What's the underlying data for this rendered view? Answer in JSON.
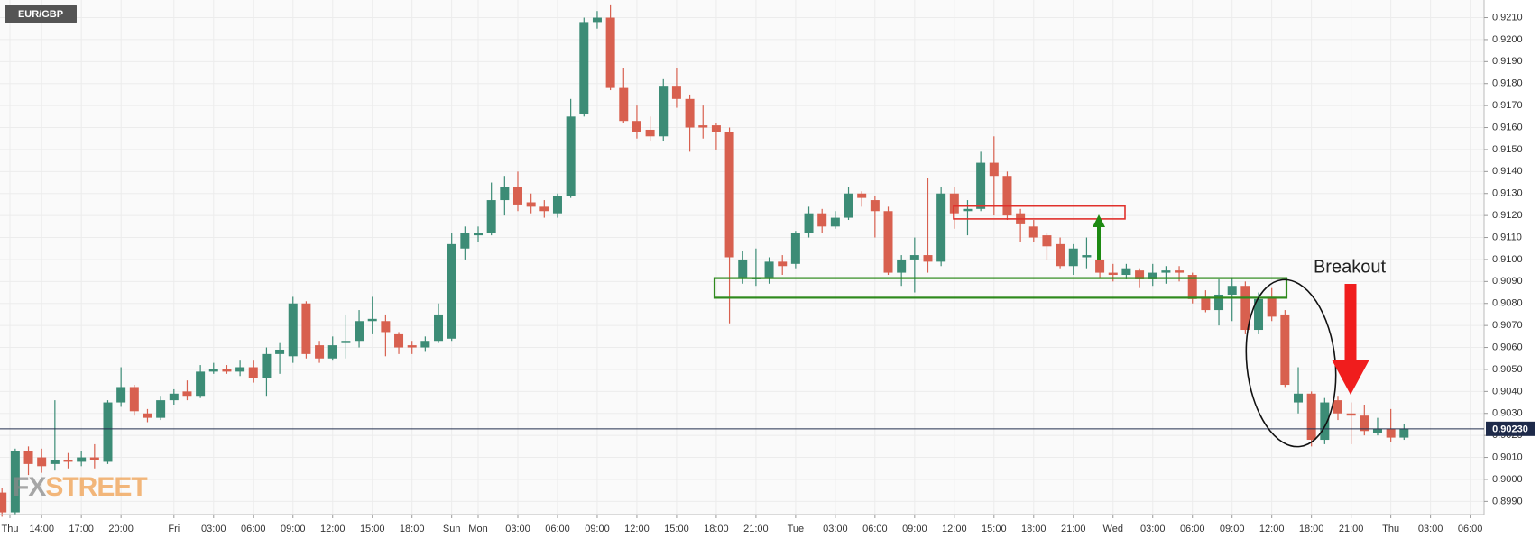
{
  "chart_data": {
    "type": "candlestick",
    "title": "EUR/GBP",
    "watermark": [
      "FX",
      "STREET"
    ],
    "annotation": "Breakout",
    "up_color": "#3c8c76",
    "down_color": "#d8604f",
    "grid": true,
    "xlim": [
      -0.15,
      112.05
    ],
    "ylim": [
      0.8984,
      0.9218
    ],
    "last_price": {
      "value": 0.9023,
      "label": "0.90230"
    },
    "xticks": [
      {
        "value": 0.6,
        "label": "Thu"
      },
      {
        "value": 3,
        "label": "14:00"
      },
      {
        "value": 6,
        "label": "17:00"
      },
      {
        "value": 9,
        "label": "20:00"
      },
      {
        "value": 13,
        "label": "Fri"
      },
      {
        "value": 16,
        "label": "03:00"
      },
      {
        "value": 19,
        "label": "06:00"
      },
      {
        "value": 22,
        "label": "09:00"
      },
      {
        "value": 25,
        "label": "12:00"
      },
      {
        "value": 28,
        "label": "15:00"
      },
      {
        "value": 31,
        "label": "18:00"
      },
      {
        "value": 34,
        "label": "Sun"
      },
      {
        "value": 36,
        "label": "Mon"
      },
      {
        "value": 39,
        "label": "03:00"
      },
      {
        "value": 42,
        "label": "06:00"
      },
      {
        "value": 45,
        "label": "09:00"
      },
      {
        "value": 48,
        "label": "12:00"
      },
      {
        "value": 51,
        "label": "15:00"
      },
      {
        "value": 54,
        "label": "18:00"
      },
      {
        "value": 57,
        "label": "21:00"
      },
      {
        "value": 60,
        "label": "Tue"
      },
      {
        "value": 63,
        "label": "03:00"
      },
      {
        "value": 66,
        "label": "06:00"
      },
      {
        "value": 69,
        "label": "09:00"
      },
      {
        "value": 72,
        "label": "12:00"
      },
      {
        "value": 75,
        "label": "15:00"
      },
      {
        "value": 78,
        "label": "18:00"
      },
      {
        "value": 81,
        "label": "21:00"
      },
      {
        "value": 84,
        "label": "Wed"
      },
      {
        "value": 87,
        "label": "03:00"
      },
      {
        "value": 90,
        "label": "06:00"
      },
      {
        "value": 93,
        "label": "09:00"
      },
      {
        "value": 96,
        "label": "12:00"
      },
      {
        "value": 99,
        "label": "18:00"
      },
      {
        "value": 102,
        "label": "21:00"
      },
      {
        "value": 105,
        "label": "Thu"
      },
      {
        "value": 108,
        "label": "03:00"
      },
      {
        "value": 111,
        "label": "06:00"
      }
    ],
    "yticks": [
      {
        "value": 0.899,
        "label": "0.8990"
      },
      {
        "value": 0.9,
        "label": "0.9000"
      },
      {
        "value": 0.901,
        "label": "0.9010"
      },
      {
        "value": 0.902,
        "label": "0.9020"
      },
      {
        "value": 0.903,
        "label": "0.9030"
      },
      {
        "value": 0.904,
        "label": "0.9040"
      },
      {
        "value": 0.905,
        "label": "0.9050"
      },
      {
        "value": 0.906,
        "label": "0.9060"
      },
      {
        "value": 0.907,
        "label": "0.9070"
      },
      {
        "value": 0.908,
        "label": "0.9080"
      },
      {
        "value": 0.909,
        "label": "0.9090"
      },
      {
        "value": 0.91,
        "label": "0.9100"
      },
      {
        "value": 0.911,
        "label": "0.9110"
      },
      {
        "value": 0.912,
        "label": "0.9120"
      },
      {
        "value": 0.913,
        "label": "0.9130"
      },
      {
        "value": 0.914,
        "label": "0.9140"
      },
      {
        "value": 0.915,
        "label": "0.9150"
      },
      {
        "value": 0.916,
        "label": "0.9160"
      },
      {
        "value": 0.917,
        "label": "0.9170"
      },
      {
        "value": 0.918,
        "label": "0.9180"
      },
      {
        "value": 0.919,
        "label": "0.9190"
      },
      {
        "value": 0.92,
        "label": "0.9200"
      },
      {
        "value": 0.921,
        "label": "0.9210"
      }
    ],
    "open": [
      0.8994,
      0.8985,
      0.9013,
      0.901,
      0.9007,
      0.9009,
      0.9008,
      0.901,
      0.9008,
      0.9035,
      0.9042,
      0.903,
      0.9028,
      0.9036,
      0.904,
      0.9038,
      0.9049,
      0.905,
      0.9049,
      0.9051,
      0.9046,
      0.9057,
      0.9056,
      0.908,
      0.9061,
      0.9055,
      0.9062,
      0.9063,
      0.9072,
      0.9072,
      0.9066,
      0.9061,
      0.906,
      0.9063,
      0.9064,
      0.9105,
      0.9111,
      0.9112,
      0.9127,
      0.9133,
      0.9126,
      0.9124,
      0.9121,
      0.9129,
      0.9166,
      0.9208,
      0.921,
      0.9178,
      0.9163,
      0.9159,
      0.9156,
      0.9179,
      0.9173,
      0.9161,
      0.9161,
      0.9158,
      0.9092,
      0.9091,
      0.9092,
      0.9099,
      0.9098,
      0.9112,
      0.9121,
      0.9115,
      0.9119,
      0.913,
      0.9127,
      0.9122,
      0.9094,
      0.91,
      0.9102,
      0.9099,
      0.913,
      0.9122,
      0.9123,
      0.9144,
      0.9138,
      0.9121,
      0.9115,
      0.9111,
      0.9107,
      0.9097,
      0.9101,
      0.91,
      0.9094,
      0.9093,
      0.9095,
      0.9091,
      0.9094,
      0.9095,
      0.9093,
      0.9083,
      0.9077,
      0.9084,
      0.9088,
      0.9068,
      0.9083,
      0.9075,
      0.9035,
      0.9039,
      0.9018,
      0.9036,
      0.903,
      0.9029,
      0.9021,
      0.9023,
      0.9019
    ],
    "high": [
      0.8996,
      0.9014,
      0.9015,
      0.9014,
      0.9036,
      0.9012,
      0.9013,
      0.9016,
      0.9036,
      0.9051,
      0.9043,
      0.9032,
      0.9038,
      0.9041,
      0.9045,
      0.9052,
      0.9053,
      0.9052,
      0.9054,
      0.9054,
      0.906,
      0.9062,
      0.9083,
      0.9081,
      0.9063,
      0.9065,
      0.9075,
      0.9077,
      0.9083,
      0.9075,
      0.9067,
      0.9063,
      0.9065,
      0.908,
      0.9112,
      0.9115,
      0.9115,
      0.9135,
      0.9138,
      0.914,
      0.913,
      0.9127,
      0.913,
      0.9173,
      0.921,
      0.9213,
      0.9216,
      0.9187,
      0.917,
      0.9165,
      0.9182,
      0.9187,
      0.9175,
      0.917,
      0.9162,
      0.916,
      0.9104,
      0.9105,
      0.9101,
      0.9102,
      0.9113,
      0.9124,
      0.9123,
      0.9122,
      0.9133,
      0.9131,
      0.9129,
      0.9124,
      0.9102,
      0.911,
      0.9137,
      0.9133,
      0.9133,
      0.9127,
      0.9149,
      0.9156,
      0.914,
      0.9123,
      0.9118,
      0.9112,
      0.911,
      0.9107,
      0.911,
      0.9101,
      0.9098,
      0.9098,
      0.9096,
      0.9098,
      0.9097,
      0.9097,
      0.9094,
      0.9086,
      0.9091,
      0.9092,
      0.909,
      0.9085,
      0.9087,
      0.9077,
      0.9051,
      0.904,
      0.9037,
      0.9038,
      0.9035,
      0.9034,
      0.9028,
      0.9032,
      0.9025
    ],
    "low": [
      0.8983,
      0.8984,
      0.9002,
      0.9003,
      0.9004,
      0.9005,
      0.9006,
      0.9005,
      0.9007,
      0.9033,
      0.9029,
      0.9026,
      0.9027,
      0.9034,
      0.9036,
      0.9037,
      0.9048,
      0.9048,
      0.9047,
      0.9044,
      0.9038,
      0.9048,
      0.9053,
      0.9055,
      0.9053,
      0.9054,
      0.9055,
      0.906,
      0.9066,
      0.9056,
      0.9057,
      0.9057,
      0.9058,
      0.9062,
      0.9063,
      0.91,
      0.9108,
      0.9111,
      0.912,
      0.9122,
      0.9121,
      0.9119,
      0.9119,
      0.9128,
      0.9165,
      0.9205,
      0.9177,
      0.9162,
      0.9155,
      0.9154,
      0.9154,
      0.9169,
      0.9149,
      0.9155,
      0.915,
      0.9071,
      0.9089,
      0.9088,
      0.9089,
      0.9093,
      0.9096,
      0.911,
      0.9112,
      0.9114,
      0.9118,
      0.9124,
      0.911,
      0.9093,
      0.9088,
      0.9085,
      0.9094,
      0.9097,
      0.9114,
      0.9111,
      0.9122,
      0.912,
      0.9118,
      0.9108,
      0.9108,
      0.91,
      0.9096,
      0.9093,
      0.9096,
      0.9092,
      0.909,
      0.9091,
      0.9087,
      0.9088,
      0.9089,
      0.909,
      0.908,
      0.9076,
      0.907,
      0.9072,
      0.9066,
      0.9066,
      0.9072,
      0.9042,
      0.903,
      0.9015,
      0.9016,
      0.9027,
      0.9016,
      0.902,
      0.902,
      0.9017,
      0.9018
    ],
    "close": [
      0.8985,
      0.9013,
      0.9007,
      0.9006,
      0.9009,
      0.9008,
      0.901,
      0.9009,
      0.9035,
      0.9042,
      0.9031,
      0.9028,
      0.9036,
      0.9039,
      0.9038,
      0.9049,
      0.905,
      0.9049,
      0.9051,
      0.9046,
      0.9057,
      0.9059,
      0.908,
      0.9057,
      0.9055,
      0.9061,
      0.9063,
      0.9072,
      0.9073,
      0.9067,
      0.906,
      0.906,
      0.9063,
      0.9075,
      0.9107,
      0.9112,
      0.9112,
      0.9127,
      0.9133,
      0.9125,
      0.9124,
      0.9122,
      0.9129,
      0.9165,
      0.9208,
      0.921,
      0.9178,
      0.9163,
      0.9158,
      0.9156,
      0.9179,
      0.9173,
      0.916,
      0.916,
      0.9158,
      0.9101,
      0.91,
      0.9092,
      0.9099,
      0.9097,
      0.9112,
      0.9121,
      0.9115,
      0.9119,
      0.913,
      0.9128,
      0.9122,
      0.9094,
      0.91,
      0.9102,
      0.9099,
      0.913,
      0.9121,
      0.9123,
      0.9144,
      0.9138,
      0.912,
      0.9116,
      0.911,
      0.9106,
      0.9097,
      0.9105,
      0.9102,
      0.9094,
      0.9093,
      0.9096,
      0.9091,
      0.9094,
      0.9095,
      0.9094,
      0.9082,
      0.9077,
      0.9084,
      0.9088,
      0.9068,
      0.9082,
      0.9074,
      0.9043,
      0.9039,
      0.9018,
      0.9035,
      0.903,
      0.9029,
      0.9022,
      0.9023,
      0.9019,
      0.9023
    ]
  }
}
